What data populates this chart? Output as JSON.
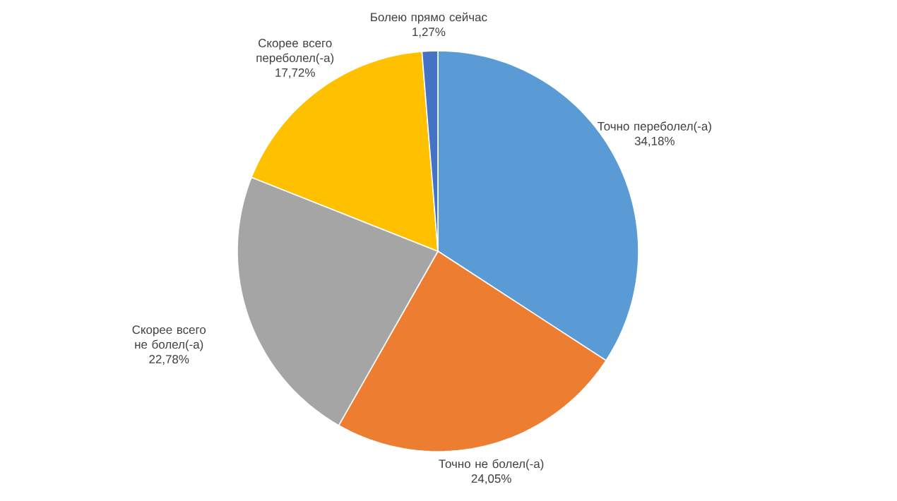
{
  "chart_data": {
    "type": "pie",
    "categories": [
      "Точно переболел(-а)",
      "Точно не болел(-а)",
      "Скорее всего не болел(-а)",
      "Скорее всего переболел(-а)",
      "Болею прямо сейчас"
    ],
    "values": [
      34.18,
      24.05,
      22.78,
      17.72,
      1.27
    ],
    "value_labels": [
      "34,18%",
      "24,05%",
      "22,78%",
      "17,72%",
      "1,27%"
    ],
    "colors": [
      "#5b9bd5",
      "#ed7d31",
      "#a5a5a5",
      "#ffc000",
      "#4472c4"
    ]
  }
}
